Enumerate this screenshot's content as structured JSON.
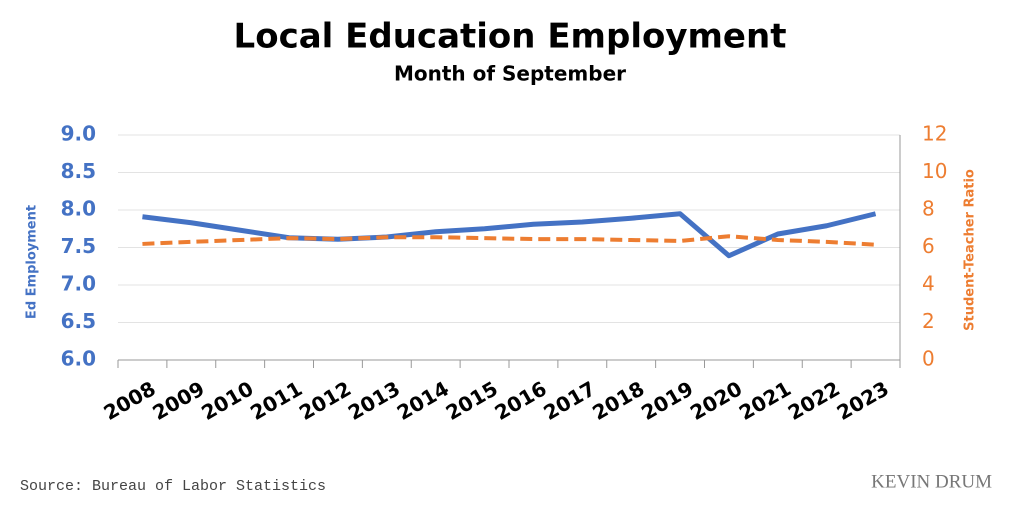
{
  "chart_data": {
    "type": "line",
    "title": "Local Education Employment",
    "subtitle": "Month of September",
    "ylabel": "Ed Employment",
    "y2label": "Student-Teacher Ratio",
    "categories": [
      "2008",
      "2009",
      "2010",
      "2011",
      "2012",
      "2013",
      "2014",
      "2015",
      "2016",
      "2017",
      "2018",
      "2019",
      "2020",
      "2021",
      "2022",
      "2023"
    ],
    "series": [
      {
        "color": "#4472c4",
        "axis": "y",
        "dashed": false,
        "values": [
          7.91,
          7.83,
          7.73,
          7.63,
          7.61,
          7.64,
          7.71,
          7.75,
          7.81,
          7.84,
          7.89,
          7.95,
          7.39,
          7.68,
          7.79,
          7.95
        ]
      },
      {
        "color": "#ed7d31",
        "axis": "y2",
        "dashed": true,
        "values": [
          6.19,
          6.3,
          6.4,
          6.5,
          6.45,
          6.55,
          6.55,
          6.5,
          6.45,
          6.45,
          6.4,
          6.35,
          6.6,
          6.4,
          6.3,
          6.15
        ]
      }
    ],
    "ylim": [
      6,
      9
    ],
    "yticks": [
      {
        "value": 6,
        "label": "6.0"
      },
      6.5,
      {
        "value": 7,
        "label": "7.0"
      },
      7.5,
      {
        "value": 8,
        "label": "8.0"
      },
      8.5,
      {
        "value": 9,
        "label": "9.0"
      }
    ],
    "y2lim": [
      0,
      12
    ],
    "y2ticks": [
      0,
      2,
      4,
      6,
      8,
      10,
      12
    ],
    "grid": true,
    "source": "Source:  Bureau  of  Labor  Statistics",
    "watermark": "KEVIN DRUM"
  }
}
